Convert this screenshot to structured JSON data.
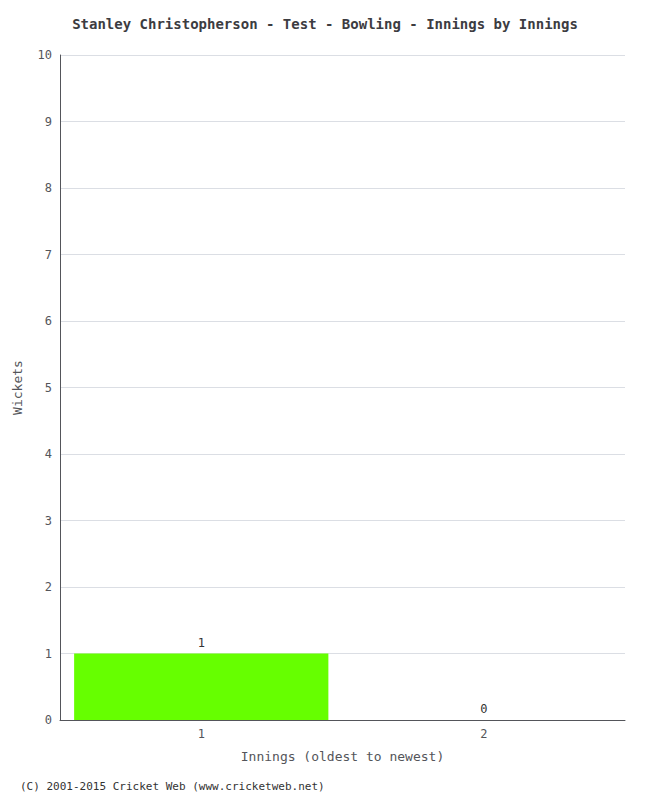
{
  "chart_data": {
    "type": "bar",
    "title": "Stanley Christopherson - Test - Bowling - Innings by Innings",
    "xlabel": "Innings (oldest to newest)",
    "ylabel": "Wickets",
    "categories": [
      "1",
      "2"
    ],
    "values": [
      1,
      0
    ],
    "colors": [
      "#66ff00",
      "#0000cc"
    ],
    "data_labels": true,
    "ylim": [
      0,
      10
    ],
    "yticks": [
      0,
      1,
      2,
      3,
      4,
      5,
      6,
      7,
      8,
      9,
      10
    ],
    "grid": true,
    "annotations": [
      "(C) 2001-2015 Cricket Web (www.cricketweb.net)"
    ]
  }
}
